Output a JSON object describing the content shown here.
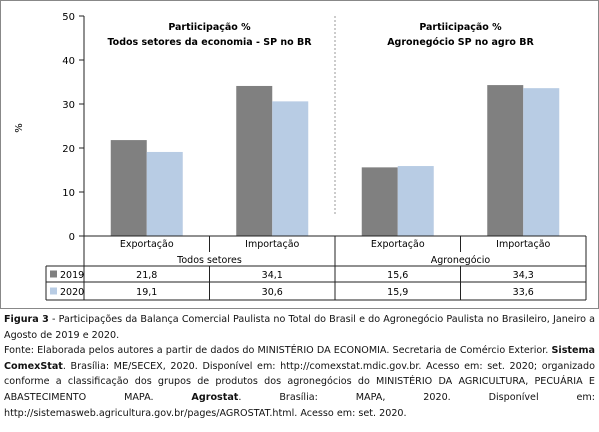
{
  "chart_data": {
    "type": "bar",
    "ylabel": "%",
    "ylim": [
      0,
      50
    ],
    "yticks": [
      0,
      10,
      20,
      30,
      40,
      50
    ],
    "grid": false,
    "groups": [
      {
        "name": "Todos setores",
        "title_lines": [
          "Partiicipação %",
          "Todos setores da economia - SP no BR"
        ],
        "categories": [
          "Exportação",
          "Importação"
        ]
      },
      {
        "name": "Agronegócio",
        "title_lines": [
          "Partiicipação %",
          "Agronegócio SP no agro  BR"
        ],
        "categories": [
          "Exportação",
          "Importação"
        ]
      }
    ],
    "series": [
      {
        "name": "2019",
        "color": "#808080",
        "values": [
          21.8,
          34.1,
          15.6,
          34.3
        ],
        "labels": [
          "21,8",
          "34,1",
          "15,6",
          "34,3"
        ]
      },
      {
        "name": "2020",
        "color": "#b8cce4",
        "values": [
          19.1,
          30.6,
          15.9,
          33.6
        ],
        "labels": [
          "19,1",
          "30,6",
          "15,9",
          "33,6"
        ]
      }
    ]
  },
  "caption": {
    "fig_label": "Figura 3",
    "fig_text": " - Participações da Balança Comercial Paulista no Total do Brasil e do Agronegócio Paulista no Brasileiro, Janeiro a Agosto de 2019 e 2020.",
    "source_1": "Fonte: Elaborada pelos autores a partir de dados do MINISTÉRIO DA ECONOMIA. Secretaria de Comércio Exterior. ",
    "source_b1": "Sistema ComexStat",
    "source_2": ". Brasília: ME/SECEX, 2020. Disponível em: http://comexstat.mdic.gov.br. Acesso em: set. 2020; organizado conforme a classificação dos grupos de produtos dos agronegócios do MINISTÉRIO DA AGRICULTURA, PECUÁRIA E ABASTECIMENTO MAPA. ",
    "source_b2": "Agrostat",
    "source_3": ". Brasília: MAPA, 2020. Disponível em: http://sistemasweb.agricultura.gov.br/pages/AGROSTAT.html. Acesso em: set. 2020."
  }
}
